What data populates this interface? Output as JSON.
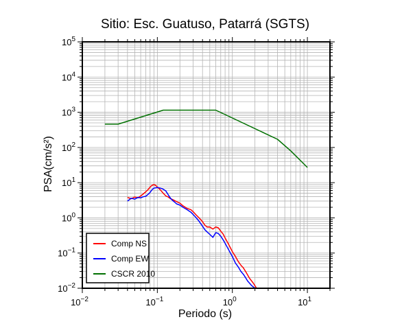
{
  "chart_data": {
    "type": "line",
    "title": "Sitio: Esc. Guatuso, Patarrá (SGTS)",
    "xlabel": "Periodo (s)",
    "ylabel": "PSA(cm/s²)",
    "x_scale": "log",
    "y_scale": "log",
    "xlim": [
      0.01,
      20
    ],
    "ylim": [
      0.01,
      100000
    ],
    "grid": true,
    "legend_position": "bottom-left",
    "x_ticks": [
      {
        "base": "10",
        "exp": "−2",
        "value": 0.01
      },
      {
        "base": "10",
        "exp": "−1",
        "value": 0.1
      },
      {
        "base": "10",
        "exp": "0",
        "value": 1
      },
      {
        "base": "10",
        "exp": "1",
        "value": 10
      }
    ],
    "y_ticks": [
      {
        "base": "10",
        "exp": "−2",
        "value": 0.01
      },
      {
        "base": "10",
        "exp": "−1",
        "value": 0.1
      },
      {
        "base": "10",
        "exp": "0",
        "value": 1
      },
      {
        "base": "10",
        "exp": "1",
        "value": 10
      },
      {
        "base": "10",
        "exp": "2",
        "value": 100
      },
      {
        "base": "10",
        "exp": "3",
        "value": 1000
      },
      {
        "base": "10",
        "exp": "4",
        "value": 10000
      },
      {
        "base": "10",
        "exp": "5",
        "value": 100000
      }
    ],
    "series": [
      {
        "name": "Comp NS",
        "color": "#ff0000",
        "points": [
          [
            0.04,
            3.8
          ],
          [
            0.045,
            3.5
          ],
          [
            0.05,
            3.9
          ],
          [
            0.055,
            3.7
          ],
          [
            0.06,
            4.2
          ],
          [
            0.065,
            4.8
          ],
          [
            0.07,
            5.5
          ],
          [
            0.075,
            6.3
          ],
          [
            0.08,
            7.5
          ],
          [
            0.085,
            8.4
          ],
          [
            0.09,
            8.8
          ],
          [
            0.095,
            8.4
          ],
          [
            0.1,
            7.5
          ],
          [
            0.11,
            6.2
          ],
          [
            0.12,
            5.0
          ],
          [
            0.13,
            4.2
          ],
          [
            0.14,
            3.9
          ],
          [
            0.15,
            3.5
          ],
          [
            0.16,
            3.3
          ],
          [
            0.18,
            2.9
          ],
          [
            0.2,
            2.6
          ],
          [
            0.22,
            2.2
          ],
          [
            0.25,
            1.85
          ],
          [
            0.28,
            1.7
          ],
          [
            0.3,
            1.5
          ],
          [
            0.33,
            1.2
          ],
          [
            0.36,
            1.0
          ],
          [
            0.4,
            0.78
          ],
          [
            0.43,
            0.62
          ],
          [
            0.46,
            0.55
          ],
          [
            0.5,
            0.55
          ],
          [
            0.55,
            0.48
          ],
          [
            0.6,
            0.55
          ],
          [
            0.65,
            0.52
          ],
          [
            0.7,
            0.42
          ],
          [
            0.75,
            0.35
          ],
          [
            0.8,
            0.27
          ],
          [
            0.9,
            0.17
          ],
          [
            1.0,
            0.11
          ],
          [
            1.1,
            0.08
          ],
          [
            1.2,
            0.057
          ],
          [
            1.3,
            0.045
          ],
          [
            1.4,
            0.038
          ],
          [
            1.5,
            0.03
          ],
          [
            1.7,
            0.019
          ],
          [
            1.9,
            0.014
          ],
          [
            2.1,
            0.01
          ]
        ]
      },
      {
        "name": "Comp EW",
        "color": "#0000ff",
        "points": [
          [
            0.04,
            3.0
          ],
          [
            0.045,
            3.6
          ],
          [
            0.05,
            3.4
          ],
          [
            0.055,
            3.8
          ],
          [
            0.06,
            3.7
          ],
          [
            0.065,
            4.0
          ],
          [
            0.07,
            4.1
          ],
          [
            0.075,
            4.6
          ],
          [
            0.08,
            5.3
          ],
          [
            0.085,
            6.3
          ],
          [
            0.09,
            7.0
          ],
          [
            0.1,
            7.3
          ],
          [
            0.11,
            7.0
          ],
          [
            0.12,
            6.5
          ],
          [
            0.13,
            5.8
          ],
          [
            0.14,
            4.5
          ],
          [
            0.15,
            3.6
          ],
          [
            0.16,
            3.1
          ],
          [
            0.17,
            2.8
          ],
          [
            0.18,
            2.5
          ],
          [
            0.2,
            2.3
          ],
          [
            0.22,
            2.0
          ],
          [
            0.25,
            1.7
          ],
          [
            0.28,
            1.45
          ],
          [
            0.3,
            1.25
          ],
          [
            0.33,
            1.0
          ],
          [
            0.36,
            0.8
          ],
          [
            0.4,
            0.58
          ],
          [
            0.43,
            0.46
          ],
          [
            0.46,
            0.4
          ],
          [
            0.5,
            0.34
          ],
          [
            0.55,
            0.28
          ],
          [
            0.6,
            0.38
          ],
          [
            0.65,
            0.36
          ],
          [
            0.7,
            0.3
          ],
          [
            0.75,
            0.24
          ],
          [
            0.8,
            0.19
          ],
          [
            0.9,
            0.12
          ],
          [
            1.0,
            0.08
          ],
          [
            1.1,
            0.052
          ],
          [
            1.2,
            0.04
          ],
          [
            1.3,
            0.03
          ],
          [
            1.4,
            0.025
          ],
          [
            1.5,
            0.02
          ],
          [
            1.6,
            0.016
          ],
          [
            1.8,
            0.012
          ],
          [
            2.0,
            0.01
          ]
        ]
      },
      {
        "name": "CSCR 2010",
        "color": "#007000",
        "points": [
          [
            0.02,
            460
          ],
          [
            0.03,
            460
          ],
          [
            0.12,
            1150
          ],
          [
            0.6,
            1150
          ],
          [
            4.0,
            170
          ],
          [
            6.0,
            80
          ],
          [
            10.0,
            27
          ]
        ]
      }
    ]
  }
}
